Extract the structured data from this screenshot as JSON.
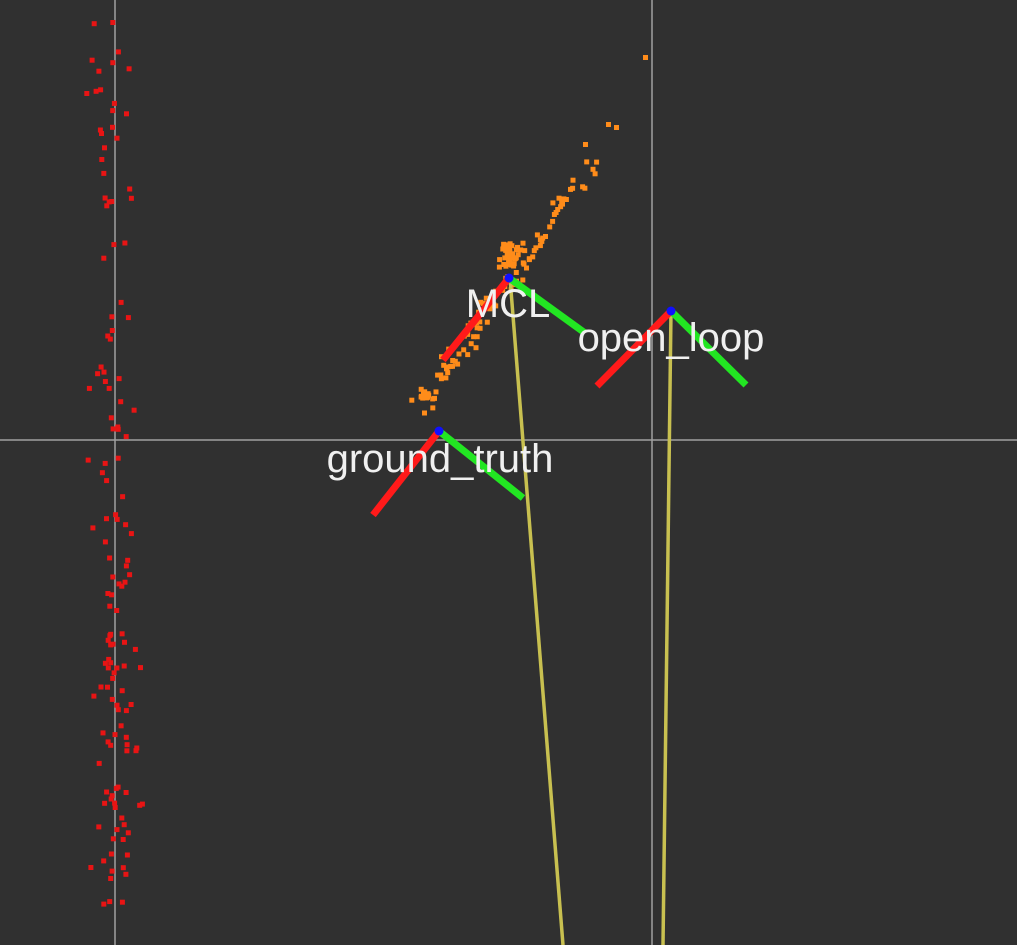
{
  "viewport": {
    "background_color": "#303030",
    "grid_line_color": "#a0a0a0"
  },
  "frames": [
    {
      "id": "mcl",
      "label": "MCL"
    },
    {
      "id": "open_loop",
      "label": "open_loop"
    },
    {
      "id": "ground_truth",
      "label": "ground_truth"
    }
  ],
  "colors": {
    "x_axis": "#ff1a1a",
    "y_axis": "#22e622",
    "origin_dot": "#1010ff",
    "trail": "#c8c050",
    "landmarks": "#e81414",
    "particles": "#ff8c1a"
  }
}
